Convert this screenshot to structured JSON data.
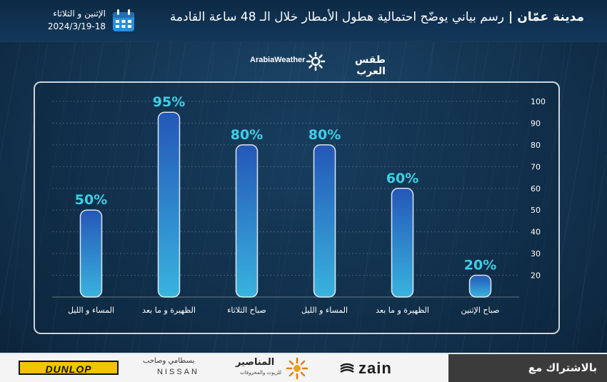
{
  "header": {
    "title_city": "مدينة عمّان",
    "title_sep": "|",
    "title_text": "رسم بياني يوضّح احتمالية هطول الأمطار خلال الـ 48 ساعة القادمة",
    "date_days": "الإثنين و الثلاثاء",
    "date_value": "2024/3/19-18",
    "calendar_icon": "calendar-icon"
  },
  "brand": {
    "arabic": "طقس العرب",
    "english": "ArabiaWeather",
    "icon": "sun-swirl-icon"
  },
  "chart_data": {
    "type": "bar",
    "categories": [
      "صباح الإثنين",
      "الظهيرة و ما بعد",
      "المساء و الليل",
      "صباح الثلاثاء",
      "الظهيرة و ما بعد",
      "المساء و الليل"
    ],
    "values": [
      20,
      60,
      80,
      80,
      95,
      50
    ],
    "value_labels": [
      "20%",
      "60%",
      "80%",
      "80%",
      "95%",
      "50%"
    ],
    "yticks": [
      20,
      30,
      40,
      50,
      60,
      70,
      80,
      90,
      100
    ],
    "ylim": [
      10,
      100
    ],
    "y_axis_side": "right",
    "x_order": "right-to-left",
    "grid": true,
    "bar_color_top": "#2457b8",
    "bar_color_bottom": "#39b3de",
    "label_color": "#3ad0e6"
  },
  "footer": {
    "subscribe": "بالاشتراك مع",
    "sponsors": {
      "zain": "zain",
      "manaseer_ar": "المناصير",
      "manaseer_sub": "للزيوت والمحروقات",
      "nissan_ar": "بسطامي وصاحب",
      "nissan_en": "NISSAN",
      "dunlop": "DUNLOP"
    }
  }
}
